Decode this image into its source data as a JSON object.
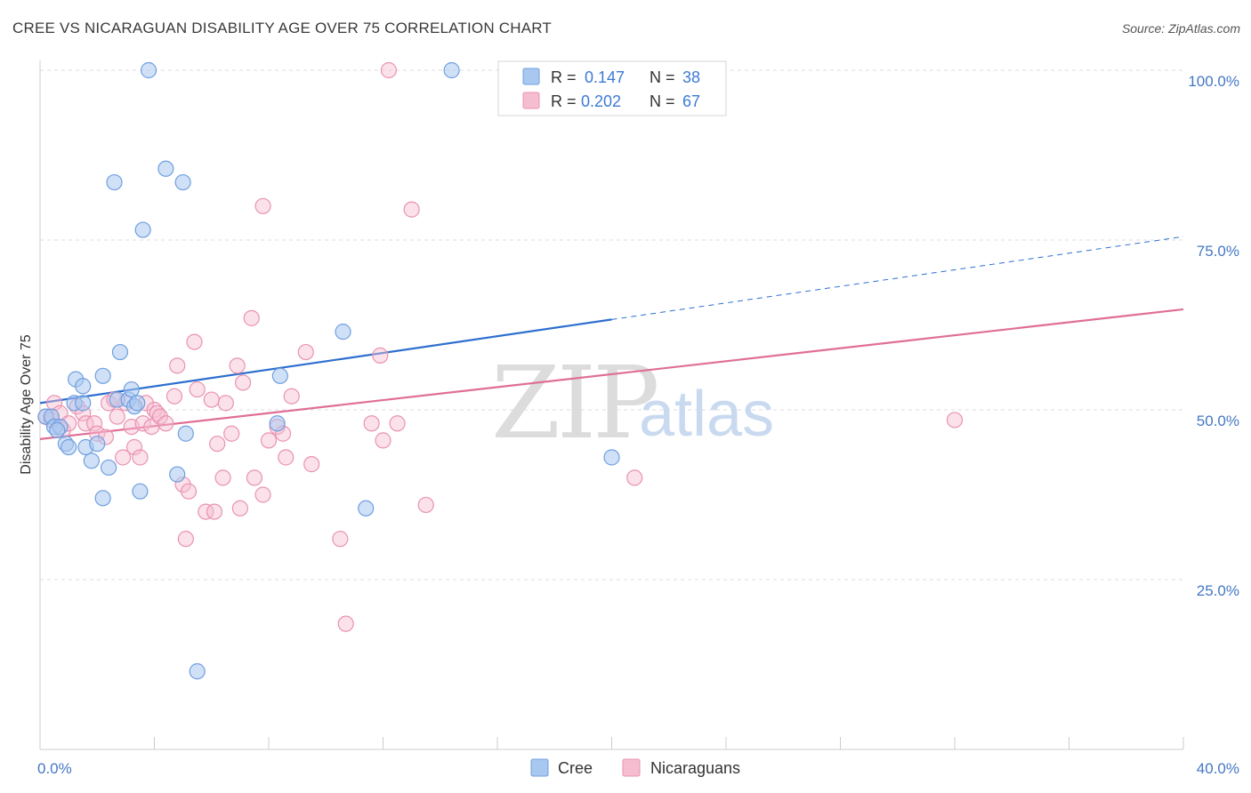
{
  "header": {
    "title": "CREE VS NICARAGUAN DISABILITY AGE OVER 75 CORRELATION CHART",
    "source": "Source: ZipAtlas.com"
  },
  "watermark": {
    "part1": "ZIP",
    "part2": "atlas"
  },
  "legend": {
    "r_label": "R =",
    "n_label": "N =",
    "rows": [
      {
        "r": "0.147",
        "n": "38"
      },
      {
        "r": "0.202",
        "n": "67"
      }
    ]
  },
  "bottom_legend": {
    "series0": "Cree",
    "series1": "Nicaraguans"
  },
  "colors": {
    "cree_fill": "#a9c8f0",
    "cree_stroke": "#6f9fe0",
    "cree_line": "#2d6fcf",
    "nic_fill": "#f6bdd0",
    "nic_stroke": "#e993b2",
    "nic_line": "#e06e97",
    "axis_label": "#4477c4"
  },
  "chart_data": {
    "type": "scatter",
    "title": "CREE VS NICARAGUAN DISABILITY AGE OVER 75 CORRELATION CHART",
    "xlabel": "",
    "ylabel": "Disability Age Over 75",
    "xlim": [
      0,
      40
    ],
    "ylim": [
      0,
      105
    ],
    "x_tick_labels": [
      "0.0%",
      "40.0%"
    ],
    "y_tick_labels": [
      "25.0%",
      "50.0%",
      "75.0%",
      "100.0%"
    ],
    "y_ticks": [
      25,
      50,
      75,
      100
    ],
    "grid": true,
    "legend_position": "top-center",
    "series": [
      {
        "name": "Cree",
        "r": 0.147,
        "n": 38,
        "trend": {
          "x0": 0,
          "y0": 51.0,
          "x1": 20,
          "y1": 63.3,
          "dashed_to_x": 40,
          "dashed_to_y": 75.5
        },
        "points": [
          [
            0.2,
            49.0
          ],
          [
            0.4,
            49.0
          ],
          [
            0.5,
            47.5
          ],
          [
            0.7,
            47.5
          ],
          [
            0.9,
            45.0
          ],
          [
            1.0,
            44.5
          ],
          [
            1.2,
            51.0
          ],
          [
            1.25,
            54.5
          ],
          [
            1.5,
            51.0
          ],
          [
            1.5,
            53.5
          ],
          [
            1.6,
            44.5
          ],
          [
            1.8,
            42.5
          ],
          [
            2.0,
            45.0
          ],
          [
            2.2,
            37.0
          ],
          [
            2.2,
            55.0
          ],
          [
            2.4,
            41.5
          ],
          [
            2.6,
            83.5
          ],
          [
            2.7,
            51.5
          ],
          [
            2.8,
            58.5
          ],
          [
            3.1,
            51.5
          ],
          [
            3.2,
            53.0
          ],
          [
            3.3,
            50.5
          ],
          [
            3.4,
            51.0
          ],
          [
            3.5,
            38.0
          ],
          [
            3.8,
            100.0
          ],
          [
            3.6,
            76.5
          ],
          [
            4.4,
            85.5
          ],
          [
            4.8,
            40.5
          ],
          [
            5.0,
            83.5
          ],
          [
            5.1,
            46.5
          ],
          [
            5.5,
            11.5
          ],
          [
            8.3,
            48.0
          ],
          [
            8.4,
            55.0
          ],
          [
            10.6,
            61.5
          ],
          [
            11.4,
            35.5
          ],
          [
            14.4,
            100.0
          ],
          [
            20.0,
            43.0
          ],
          [
            0.6,
            47.0
          ]
        ]
      },
      {
        "name": "Nicaraguans",
        "r": 0.202,
        "n": 67,
        "trend": {
          "x0": 0,
          "y0": 45.7,
          "x1": 40,
          "y1": 64.8
        },
        "points": [
          [
            0.2,
            49.0
          ],
          [
            0.4,
            48.5
          ],
          [
            0.5,
            51.0
          ],
          [
            0.7,
            49.5
          ],
          [
            0.8,
            47.0
          ],
          [
            1.0,
            48.0
          ],
          [
            1.3,
            50.5
          ],
          [
            1.5,
            49.5
          ],
          [
            1.6,
            48.0
          ],
          [
            1.9,
            48.0
          ],
          [
            2.0,
            46.5
          ],
          [
            2.3,
            46.0
          ],
          [
            2.4,
            51.0
          ],
          [
            2.6,
            51.5
          ],
          [
            2.7,
            49.0
          ],
          [
            2.9,
            43.0
          ],
          [
            3.0,
            51.0
          ],
          [
            3.2,
            47.5
          ],
          [
            3.3,
            44.5
          ],
          [
            3.5,
            43.0
          ],
          [
            3.6,
            48.0
          ],
          [
            3.7,
            51.0
          ],
          [
            3.9,
            47.5
          ],
          [
            4.0,
            50.0
          ],
          [
            4.1,
            49.5
          ],
          [
            4.2,
            49.0
          ],
          [
            4.4,
            48.0
          ],
          [
            4.7,
            52.0
          ],
          [
            4.8,
            56.5
          ],
          [
            5.0,
            39.0
          ],
          [
            5.1,
            31.0
          ],
          [
            5.2,
            38.0
          ],
          [
            5.4,
            60.0
          ],
          [
            5.5,
            53.0
          ],
          [
            5.8,
            35.0
          ],
          [
            6.0,
            51.5
          ],
          [
            6.1,
            35.0
          ],
          [
            6.2,
            45.0
          ],
          [
            6.4,
            40.0
          ],
          [
            6.5,
            51.0
          ],
          [
            6.7,
            46.5
          ],
          [
            6.9,
            56.5
          ],
          [
            7.0,
            35.5
          ],
          [
            7.1,
            54.0
          ],
          [
            7.4,
            63.5
          ],
          [
            7.5,
            40.0
          ],
          [
            7.8,
            37.5
          ],
          [
            7.8,
            80.0
          ],
          [
            8.0,
            45.5
          ],
          [
            8.3,
            47.5
          ],
          [
            8.5,
            46.5
          ],
          [
            8.6,
            43.0
          ],
          [
            8.8,
            52.0
          ],
          [
            9.3,
            58.5
          ],
          [
            9.5,
            42.0
          ],
          [
            10.5,
            31.0
          ],
          [
            10.7,
            18.5
          ],
          [
            11.6,
            48.0
          ],
          [
            11.9,
            58.0
          ],
          [
            12.0,
            45.5
          ],
          [
            12.2,
            100.0
          ],
          [
            12.5,
            48.0
          ],
          [
            13.0,
            79.5
          ],
          [
            13.5,
            36.0
          ],
          [
            20.8,
            40.0
          ],
          [
            21.2,
            100.0
          ],
          [
            32.0,
            48.5
          ]
        ]
      }
    ]
  }
}
